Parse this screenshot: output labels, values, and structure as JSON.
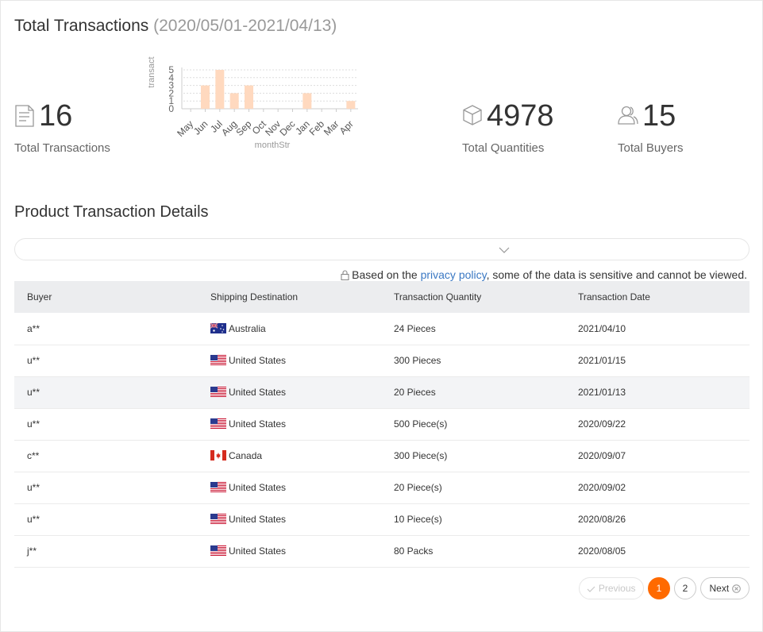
{
  "header": {
    "title": "Total Transactions",
    "date_range": "(2020/05/01-2021/04/13)"
  },
  "stats": {
    "transactions": {
      "value": "16",
      "label": "Total Transactions",
      "icon": "document-icon"
    },
    "quantities": {
      "value": "4978",
      "label": "Total Quantities",
      "icon": "box-icon"
    },
    "buyers": {
      "value": "15",
      "label": "Total Buyers",
      "icon": "users-icon"
    }
  },
  "chart_data": {
    "type": "bar",
    "categories": [
      "May",
      "Jun",
      "Jul",
      "Aug",
      "Sep",
      "Oct",
      "Nov",
      "Dec",
      "Jan",
      "Feb",
      "Mar",
      "Apr"
    ],
    "values": [
      0,
      3,
      5,
      2,
      3,
      0,
      0,
      0,
      2,
      0,
      0,
      1
    ],
    "xlabel": "monthStr",
    "ylabel": "transact",
    "ylim": [
      0,
      5
    ],
    "yticks": [
      0,
      1,
      2,
      3,
      4,
      5
    ],
    "grid": true,
    "colors": {
      "bar": "#ffd9bf"
    }
  },
  "details": {
    "title": "Product Transaction Details",
    "privacy_before": "Based on the ",
    "privacy_link": "privacy policy",
    "privacy_after": ", some of the data is sensitive and cannot be viewed."
  },
  "table": {
    "columns": [
      "Buyer",
      "Shipping Destination",
      "Transaction Quantity",
      "Transaction Date"
    ],
    "rows": [
      {
        "buyer": "a**",
        "country": "Australia",
        "flag": "au",
        "qty": "24 Pieces",
        "date": "2021/04/10"
      },
      {
        "buyer": "u**",
        "country": "United States",
        "flag": "us",
        "qty": "300 Pieces",
        "date": "2021/01/15"
      },
      {
        "buyer": "u**",
        "country": "United States",
        "flag": "us",
        "qty": "20 Pieces",
        "date": "2021/01/13"
      },
      {
        "buyer": "u**",
        "country": "United States",
        "flag": "us",
        "qty": "500 Piece(s)",
        "date": "2020/09/22"
      },
      {
        "buyer": "c**",
        "country": "Canada",
        "flag": "ca",
        "qty": "300 Piece(s)",
        "date": "2020/09/07"
      },
      {
        "buyer": "u**",
        "country": "United States",
        "flag": "us",
        "qty": "20 Piece(s)",
        "date": "2020/09/02"
      },
      {
        "buyer": "u**",
        "country": "United States",
        "flag": "us",
        "qty": "10 Piece(s)",
        "date": "2020/08/26"
      },
      {
        "buyer": "j**",
        "country": "United States",
        "flag": "us",
        "qty": "80 Packs",
        "date": "2020/08/05"
      }
    ]
  },
  "pagination": {
    "previous": "Previous",
    "pages": [
      "1",
      "2"
    ],
    "current": "1",
    "next": "Next"
  },
  "colors": {
    "accent": "#ff6a00",
    "link": "#3a78c3"
  }
}
